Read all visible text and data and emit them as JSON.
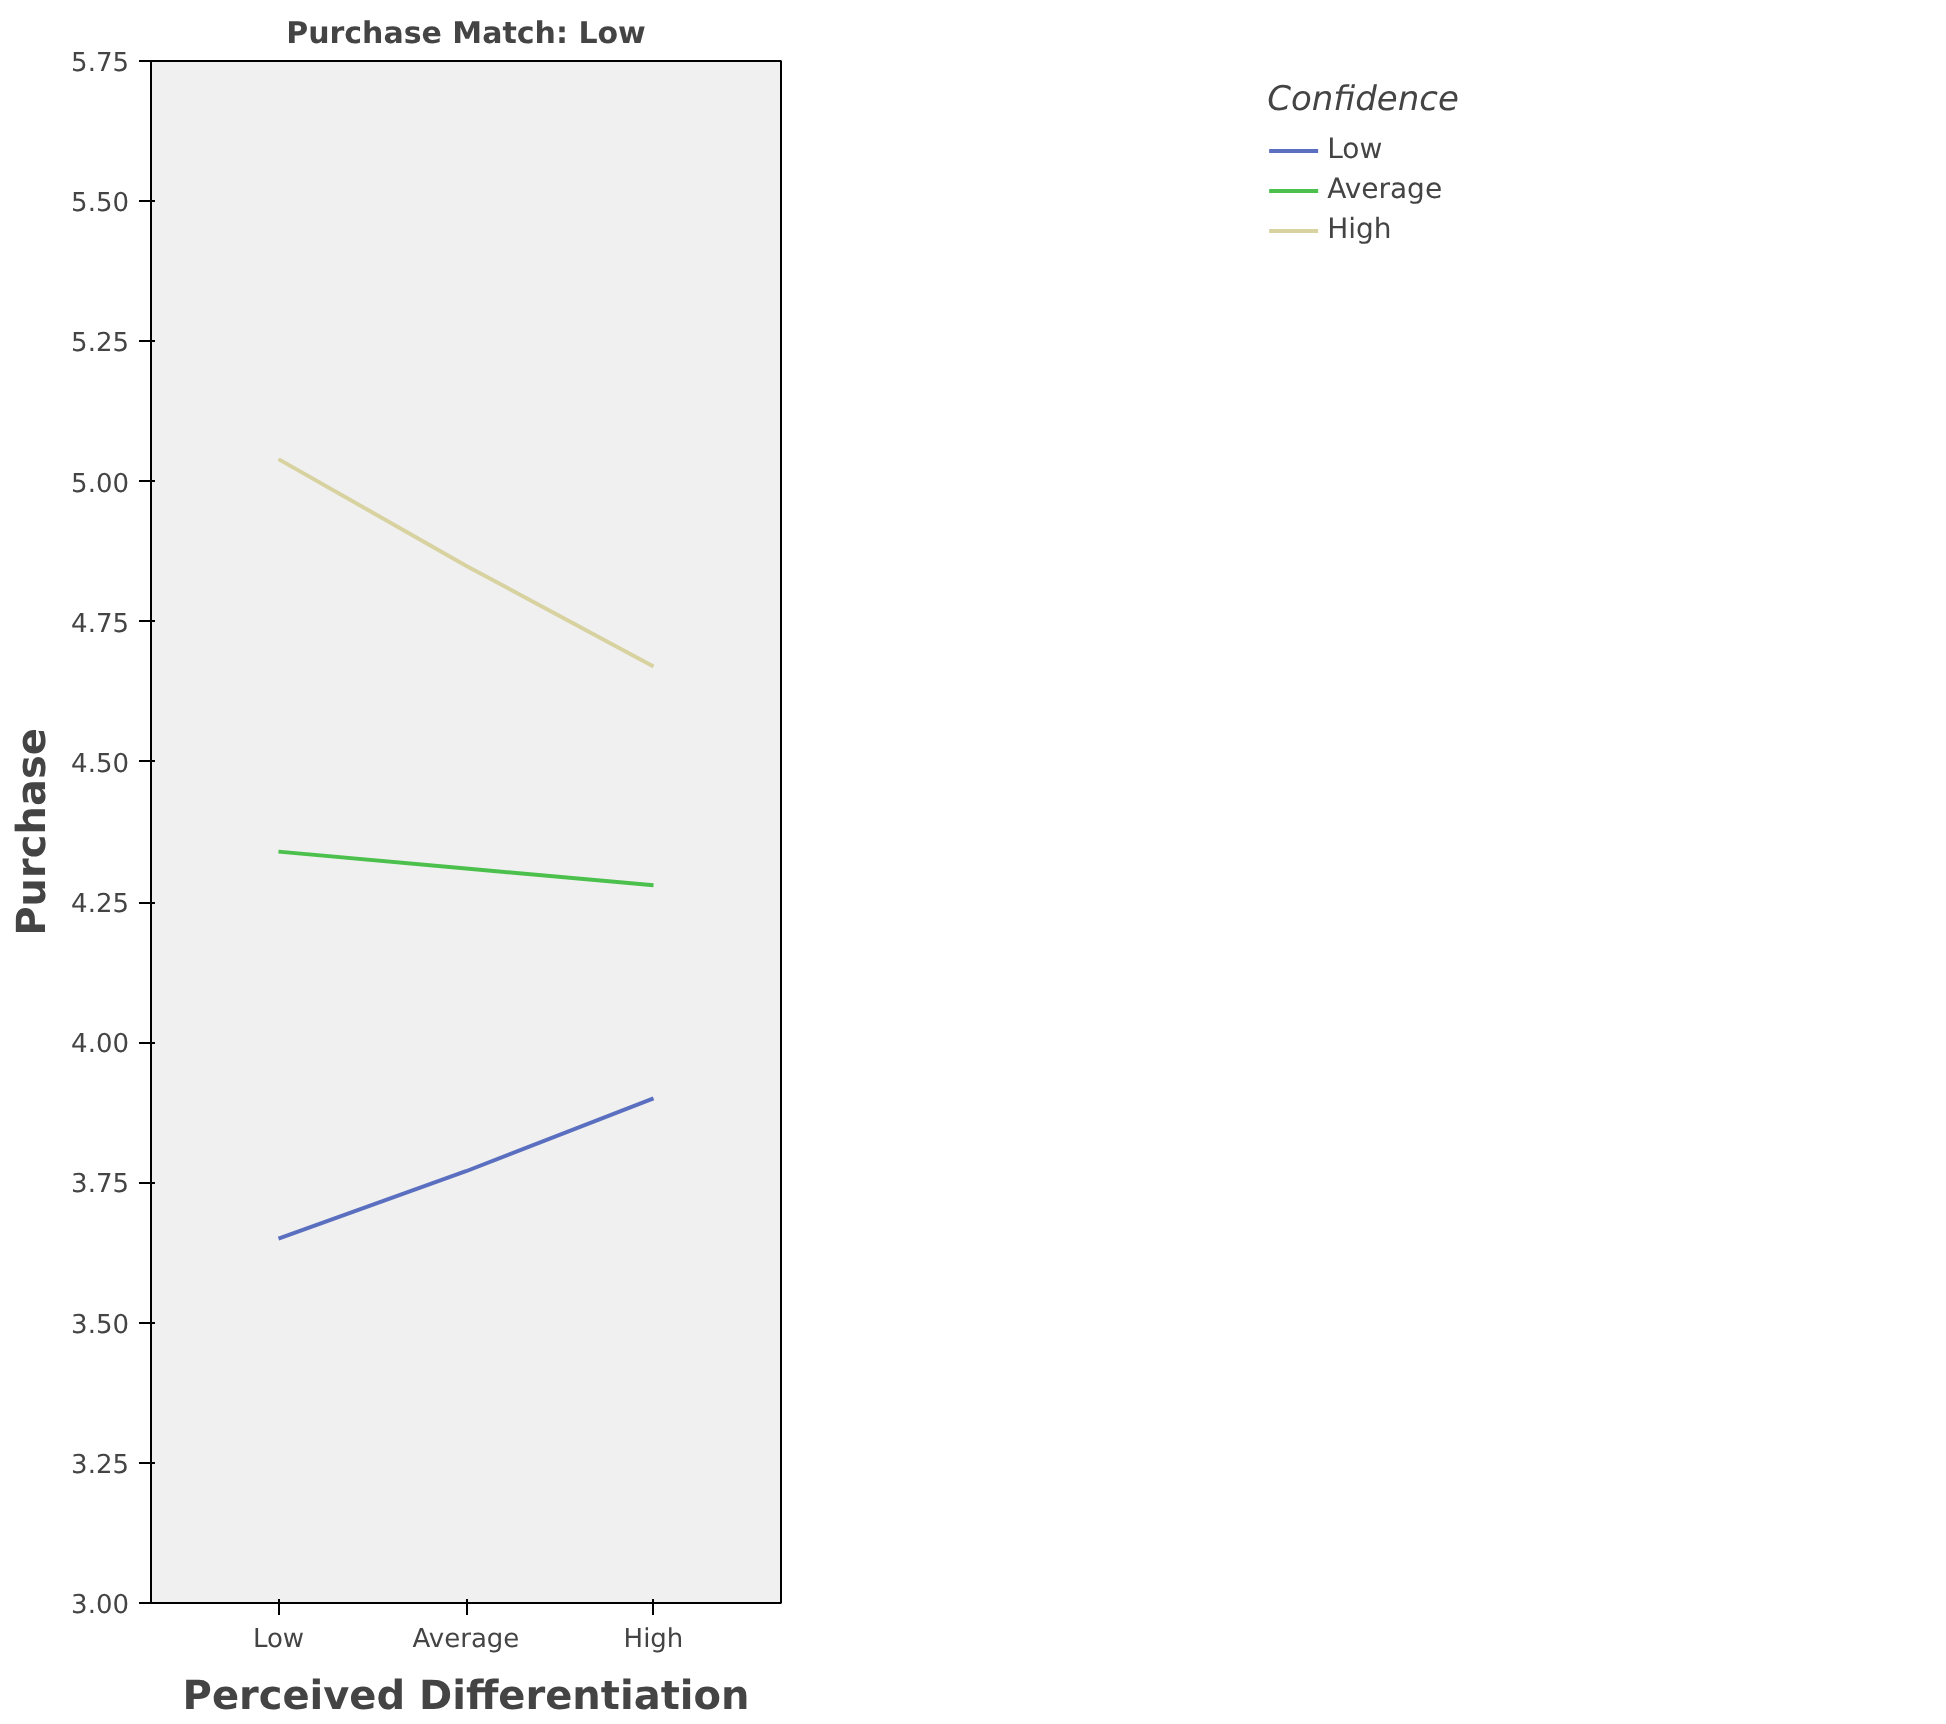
{
  "chart_data": {
    "type": "line",
    "title": "Purchase Match: Low",
    "xlabel": "Perceived Differentiation",
    "ylabel": "Purchase",
    "legend_title": "Confidence",
    "categories": [
      "Low",
      "Average",
      "High"
    ],
    "series": [
      {
        "name": "Low",
        "color": "#5a6fc0",
        "values": [
          3.65,
          3.77,
          3.9
        ]
      },
      {
        "name": "Average",
        "color": "#4cc04c",
        "values": [
          4.34,
          4.31,
          4.28
        ]
      },
      {
        "name": "High",
        "color": "#d8d2a0",
        "values": [
          5.04,
          4.85,
          4.67
        ]
      }
    ],
    "ylim": [
      3.0,
      5.75
    ],
    "yticks": [
      {
        "value": 3.0,
        "label": "3.00"
      },
      {
        "value": 3.25,
        "label": "3.25"
      },
      {
        "value": 3.5,
        "label": "3.50"
      },
      {
        "value": 3.75,
        "label": "3.75"
      },
      {
        "value": 4.0,
        "label": "4.00"
      },
      {
        "value": 4.25,
        "label": "4.25"
      },
      {
        "value": 4.5,
        "label": "4.50"
      },
      {
        "value": 4.75,
        "label": "4.75"
      },
      {
        "value": 5.0,
        "label": "5.00"
      },
      {
        "value": 5.25,
        "label": "5.25"
      },
      {
        "value": 5.5,
        "label": "5.50"
      },
      {
        "value": 5.75,
        "label": "5.75"
      }
    ],
    "grid": false,
    "legend": "top right",
    "marker": "none",
    "line_style": "solid"
  }
}
